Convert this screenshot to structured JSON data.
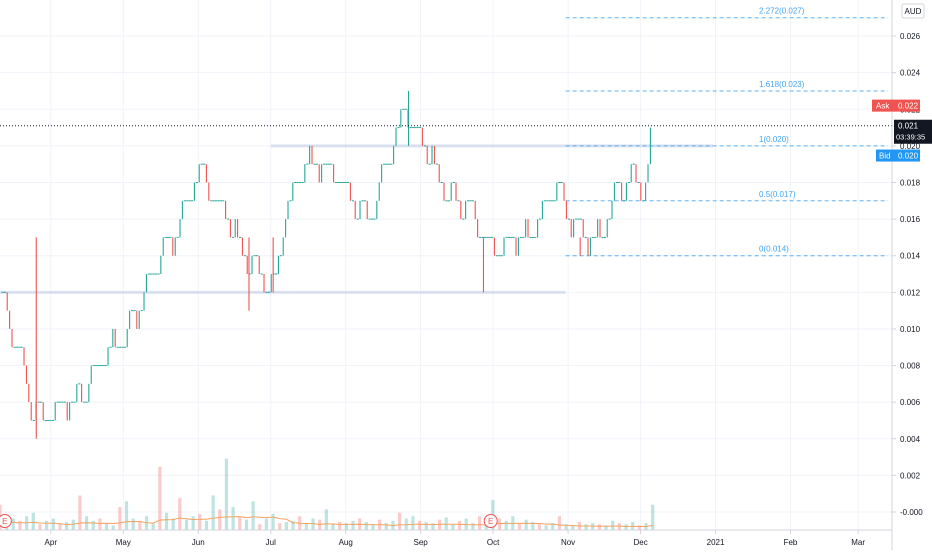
{
  "currency_badge": "AUD",
  "price_axis_labels": [
    "0.026",
    "0.024",
    "0.022",
    "0.020",
    "0.018",
    "0.016",
    "0.014",
    "0.012",
    "0.010",
    "0.008",
    "0.006",
    "0.004",
    "0.002",
    "-0.000"
  ],
  "time_axis_labels": [
    "Apr",
    "May",
    "Jun",
    "Jul",
    "Aug",
    "Sep",
    "Oct",
    "Nov",
    "Dec",
    "2021",
    "Feb",
    "Mar"
  ],
  "ask": {
    "label": "Ask",
    "value": "0.022",
    "price": 0.0222,
    "color": "#f05350"
  },
  "last": {
    "value": "0.021",
    "countdown": "03:39:35",
    "price": 0.0211
  },
  "bid": {
    "label": "Bid",
    "value": "0.020",
    "price": 0.0198,
    "color": "#2196f3"
  },
  "earnings_markers": [
    {
      "label": "E"
    },
    {
      "label": "E"
    }
  ],
  "colors": {
    "up": "#26a69a",
    "down": "#ef5350",
    "fib": "#42a5f5",
    "grid": "#f0f3fa",
    "volume_ma": "#f5a35f"
  },
  "chart_data": {
    "type": "candlestick",
    "price_scale": {
      "min": 0.0,
      "max": 0.028
    },
    "x_range": {
      "start": "2020-03-11",
      "end": "2021-03-15"
    },
    "fib_retracement": [
      {
        "level": "0",
        "price": 0.014,
        "label": "0(0.014)"
      },
      {
        "level": "0.5",
        "price": 0.017,
        "label": "0.5(0.017)"
      },
      {
        "level": "1",
        "price": 0.02,
        "label": "1(0.020)"
      },
      {
        "level": "1.618",
        "price": 0.023,
        "label": "1.618(0.023)"
      },
      {
        "level": "2.272",
        "price": 0.027,
        "label": "2.272(0.027)"
      }
    ],
    "horizontal_zones": [
      {
        "price": 0.012,
        "from": "2020-03-11",
        "to": "2020-10-31"
      },
      {
        "price": 0.02,
        "from": "2020-07-01",
        "to": "2020-12-31"
      }
    ],
    "close_path": [
      [
        "2020-03-12",
        0.012
      ],
      [
        "2020-03-18",
        0.009
      ],
      [
        "2020-03-24",
        0.006
      ],
      [
        "2020-03-29",
        0.005
      ],
      [
        "2020-04-05",
        0.006
      ],
      [
        "2020-04-12",
        0.006
      ],
      [
        "2020-04-20",
        0.008
      ],
      [
        "2020-04-27",
        0.009
      ],
      [
        "2020-05-04",
        0.01
      ],
      [
        "2020-05-10",
        0.012
      ],
      [
        "2020-05-16",
        0.014
      ],
      [
        "2020-05-22",
        0.015
      ],
      [
        "2020-05-27",
        0.017
      ],
      [
        "2020-06-02",
        0.019
      ],
      [
        "2020-06-08",
        0.017
      ],
      [
        "2020-06-14",
        0.016
      ],
      [
        "2020-06-20",
        0.014
      ],
      [
        "2020-06-27",
        0.013
      ],
      [
        "2020-07-02",
        0.012
      ],
      [
        "2020-07-07",
        0.016
      ],
      [
        "2020-07-12",
        0.018
      ],
      [
        "2020-07-17",
        0.019
      ],
      [
        "2020-07-23",
        0.019
      ],
      [
        "2020-07-29",
        0.018
      ],
      [
        "2020-08-04",
        0.017
      ],
      [
        "2020-08-10",
        0.016
      ],
      [
        "2020-08-16",
        0.018
      ],
      [
        "2020-08-21",
        0.02
      ],
      [
        "2020-08-25",
        0.022
      ],
      [
        "2020-08-30",
        0.021
      ],
      [
        "2020-09-04",
        0.02
      ],
      [
        "2020-09-09",
        0.018
      ],
      [
        "2020-09-15",
        0.017
      ],
      [
        "2020-09-21",
        0.017
      ],
      [
        "2020-09-27",
        0.015
      ],
      [
        "2020-10-03",
        0.014
      ],
      [
        "2020-10-09",
        0.015
      ],
      [
        "2020-10-15",
        0.015
      ],
      [
        "2020-10-21",
        0.016
      ],
      [
        "2020-10-27",
        0.018
      ],
      [
        "2020-11-02",
        0.016
      ],
      [
        "2020-11-08",
        0.015
      ],
      [
        "2020-11-14",
        0.015
      ],
      [
        "2020-11-20",
        0.017
      ],
      [
        "2020-11-24",
        0.018
      ],
      [
        "2020-11-29",
        0.018
      ],
      [
        "2020-12-03",
        0.018
      ],
      [
        "2020-12-06",
        0.021
      ]
    ],
    "spikes": [
      {
        "date": "2020-03-26",
        "low": 0.004
      },
      {
        "date": "2020-06-22",
        "low": 0.011
      },
      {
        "date": "2020-07-02",
        "low": 0.012
      },
      {
        "date": "2020-08-27",
        "high": 0.023
      },
      {
        "date": "2020-09-27",
        "low": 0.012
      },
      {
        "date": "2020-11-06",
        "low": 0.014
      }
    ],
    "volume_scale_max": 1.0,
    "volume": [
      0.22,
      0.05,
      0.1,
      0.08,
      0.12,
      0.15,
      0.05,
      0.08,
      0.1,
      0.06,
      0.07,
      0.09,
      0.3,
      0.12,
      0.08,
      0.1,
      0.06,
      0.04,
      0.2,
      0.25,
      0.1,
      0.08,
      0.12,
      0.06,
      0.55,
      0.15,
      0.1,
      0.28,
      0.09,
      0.12,
      0.14,
      0.08,
      0.3,
      0.18,
      0.62,
      0.2,
      0.11,
      0.09,
      0.25,
      0.05,
      0.1,
      0.14,
      0.06,
      0.07,
      0.08,
      0.12,
      0.06,
      0.1,
      0.09,
      0.18,
      0.05,
      0.07,
      0.06,
      0.08,
      0.1,
      0.07,
      0.05,
      0.09,
      0.06,
      0.08,
      0.15,
      0.1,
      0.12,
      0.08,
      0.07,
      0.06,
      0.09,
      0.11,
      0.05,
      0.08,
      0.1,
      0.06,
      0.12,
      0.07,
      0.26,
      0.1,
      0.08,
      0.12,
      0.06,
      0.09,
      0.07,
      0.05,
      0.04,
      0.06,
      0.12,
      0.05,
      0.04,
      0.07,
      0.05,
      0.06,
      0.05,
      0.04,
      0.08,
      0.06,
      0.05,
      0.07,
      0.04,
      0.06,
      0.22
    ]
  }
}
